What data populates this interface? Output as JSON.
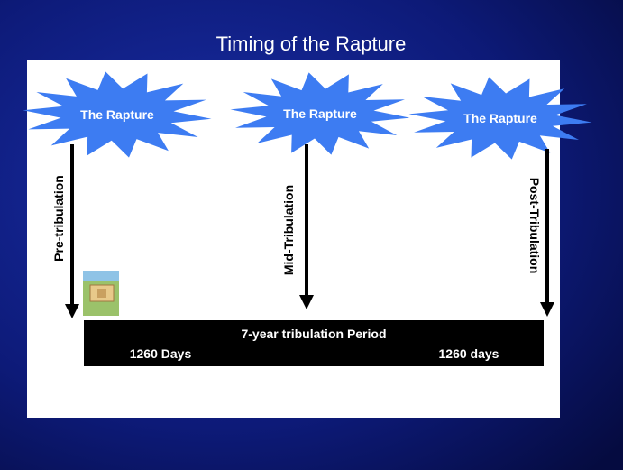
{
  "title": "Timing of the Rapture",
  "raptures": [
    {
      "label": "The Rapture",
      "view": "Pre-tribulation"
    },
    {
      "label": "The Rapture",
      "view": "Mid-Tribulation"
    },
    {
      "label": "The Rapture",
      "view": "Post-Tribulation"
    }
  ],
  "period": {
    "label": "7-year tribulation Period",
    "first_half": "1260 Days",
    "second_half": "1260 days"
  }
}
